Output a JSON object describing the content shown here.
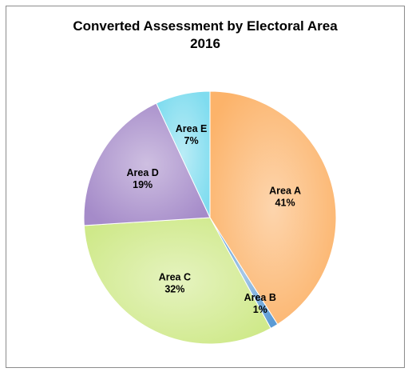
{
  "chart_data": {
    "type": "pie",
    "title": "Converted Assessment by Electoral Area",
    "subtitle": "2016",
    "categories": [
      "Area A",
      "Area B",
      "Area C",
      "Area D",
      "Area E"
    ],
    "values": [
      41,
      1,
      32,
      19,
      7
    ],
    "value_labels": [
      "41%",
      "1%",
      "32%",
      "19%",
      "7%"
    ],
    "colors": [
      "#fcb36a",
      "#5b9bd5",
      "#cfe98a",
      "#a58bc9",
      "#7fdcef"
    ],
    "legend": "none"
  }
}
